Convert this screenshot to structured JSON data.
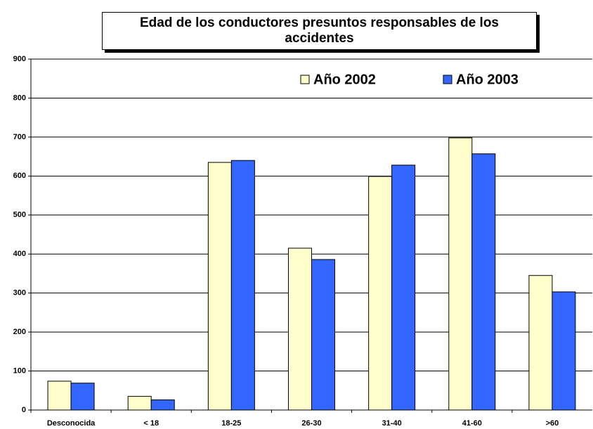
{
  "chart_data": {
    "type": "bar",
    "title": "Edad de los conductores presuntos responsables de los accidentes",
    "categories": [
      "Desconocida",
      "< 18",
      "18-25",
      "26-30",
      "31-40",
      "41-60",
      ">60"
    ],
    "series": [
      {
        "name": "Año 2002",
        "color": "#ffffcc",
        "values": [
          74,
          35,
          635,
          415,
          599,
          698,
          345
        ]
      },
      {
        "name": "Año 2003",
        "color": "#3366ff",
        "values": [
          69,
          26,
          640,
          386,
          628,
          657,
          303
        ]
      }
    ],
    "ylim": [
      0,
      900
    ],
    "yticks": [
      0,
      100,
      200,
      300,
      400,
      500,
      600,
      700,
      800,
      900
    ],
    "grid": true,
    "legend": "top-right"
  }
}
